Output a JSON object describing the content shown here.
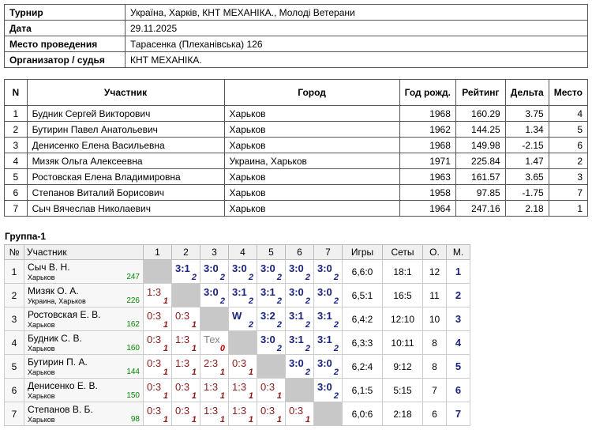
{
  "info": {
    "rows": [
      [
        "Турнир",
        "Україна, Харків, КНТ МЕХАНІКА., Молоді Ветерани"
      ],
      [
        "Дата",
        "29.11.2025"
      ],
      [
        "Место проведения",
        "Тарасенка (Плеханівська) 126"
      ],
      [
        "Организатор / судья",
        "КНТ МЕХАНІКА."
      ]
    ]
  },
  "players": {
    "header": [
      "N",
      "Участник",
      "Город",
      "Год рожд.",
      "Рейтинг",
      "Дельта",
      "Место"
    ],
    "rows": [
      [
        "1",
        "Будник Сергей Викторович",
        "Харьков",
        "1968",
        "160.29",
        "3.75",
        "4"
      ],
      [
        "2",
        "Бутирин Павел Анатольевич",
        "Харьков",
        "1962",
        "144.25",
        "1.34",
        "5"
      ],
      [
        "3",
        "Денисенко Елена Васильевна",
        "Харьков",
        "1968",
        "149.98",
        "-2.15",
        "6"
      ],
      [
        "4",
        "Мизяк Ольга Алексеевна",
        "Украина, Харьков",
        "1971",
        "225.84",
        "1.47",
        "2"
      ],
      [
        "5",
        "Ростовская Елена Владимировна",
        "Харьков",
        "1963",
        "161.57",
        "3.65",
        "3"
      ],
      [
        "6",
        "Степанов Виталий Борисович",
        "Харьков",
        "1958",
        "97.85",
        "-1.75",
        "7"
      ],
      [
        "7",
        "Сыч Вячеслав Николаевич",
        "Харьков",
        "1964",
        "247.16",
        "2.18",
        "1"
      ]
    ]
  },
  "group": {
    "title": "Группа-1",
    "header": [
      "№",
      "Участник",
      "1",
      "2",
      "3",
      "4",
      "5",
      "6",
      "7",
      "Игры",
      "Сеты",
      "О.",
      "М."
    ],
    "rows": [
      {
        "num": "1",
        "name": "Сыч В. Н.",
        "city": "Харьков",
        "rating": "247",
        "cells": [
          null,
          {
            "score": "3:1",
            "points": "2"
          },
          {
            "score": "3:0",
            "points": "2"
          },
          {
            "score": "3:0",
            "points": "2"
          },
          {
            "score": "3:0",
            "points": "2"
          },
          {
            "score": "3:0",
            "points": "2"
          },
          {
            "score": "3:0",
            "points": "2"
          }
        ],
        "games": "6,6:0",
        "sets": "18:1",
        "o": "12",
        "m": "1"
      },
      {
        "num": "2",
        "name": "Мизяк О. А.",
        "city": "Украина, Харьков",
        "rating": "226",
        "cells": [
          {
            "score": "1:3",
            "points": "1"
          },
          null,
          {
            "score": "3:0",
            "points": "2"
          },
          {
            "score": "3:1",
            "points": "2"
          },
          {
            "score": "3:1",
            "points": "2"
          },
          {
            "score": "3:0",
            "points": "2"
          },
          {
            "score": "3:0",
            "points": "2"
          }
        ],
        "games": "6,5:1",
        "sets": "16:5",
        "o": "11",
        "m": "2"
      },
      {
        "num": "3",
        "name": "Ростовская Е. В.",
        "city": "Харьков",
        "rating": "162",
        "cells": [
          {
            "score": "0:3",
            "points": "1"
          },
          {
            "score": "0:3",
            "points": "1"
          },
          null,
          {
            "score": "W",
            "points": "2"
          },
          {
            "score": "3:2",
            "points": "2"
          },
          {
            "score": "3:1",
            "points": "2"
          },
          {
            "score": "3:1",
            "points": "2"
          }
        ],
        "games": "6,4:2",
        "sets": "12:10",
        "o": "10",
        "m": "3"
      },
      {
        "num": "4",
        "name": "Будник С. В.",
        "city": "Харьков",
        "rating": "160",
        "cells": [
          {
            "score": "0:3",
            "points": "1"
          },
          {
            "score": "1:3",
            "points": "1"
          },
          {
            "score": "Тех",
            "points": "0"
          },
          null,
          {
            "score": "3:0",
            "points": "2"
          },
          {
            "score": "3:1",
            "points": "2"
          },
          {
            "score": "3:1",
            "points": "2"
          }
        ],
        "games": "6,3:3",
        "sets": "10:11",
        "o": "8",
        "m": "4"
      },
      {
        "num": "5",
        "name": "Бутирин П. А.",
        "city": "Харьков",
        "rating": "144",
        "cells": [
          {
            "score": "0:3",
            "points": "1"
          },
          {
            "score": "1:3",
            "points": "1"
          },
          {
            "score": "2:3",
            "points": "1"
          },
          {
            "score": "0:3",
            "points": "1"
          },
          null,
          {
            "score": "3:0",
            "points": "2"
          },
          {
            "score": "3:0",
            "points": "2"
          }
        ],
        "games": "6,2:4",
        "sets": "9:12",
        "o": "8",
        "m": "5"
      },
      {
        "num": "6",
        "name": "Денисенко Е. В.",
        "city": "Харьков",
        "rating": "150",
        "cells": [
          {
            "score": "0:3",
            "points": "1"
          },
          {
            "score": "0:3",
            "points": "1"
          },
          {
            "score": "1:3",
            "points": "1"
          },
          {
            "score": "1:3",
            "points": "1"
          },
          {
            "score": "0:3",
            "points": "1"
          },
          null,
          {
            "score": "3:0",
            "points": "2"
          }
        ],
        "games": "6,1:5",
        "sets": "5:15",
        "o": "7",
        "m": "6"
      },
      {
        "num": "7",
        "name": "Степанов В. Б.",
        "city": "Харьков",
        "rating": "98",
        "cells": [
          {
            "score": "0:3",
            "points": "1"
          },
          {
            "score": "0:3",
            "points": "1"
          },
          {
            "score": "1:3",
            "points": "1"
          },
          {
            "score": "1:3",
            "points": "1"
          },
          {
            "score": "0:3",
            "points": "1"
          },
          {
            "score": "0:3",
            "points": "1"
          },
          null
        ],
        "games": "6,0:6",
        "sets": "2:18",
        "o": "6",
        "m": "7"
      }
    ]
  }
}
